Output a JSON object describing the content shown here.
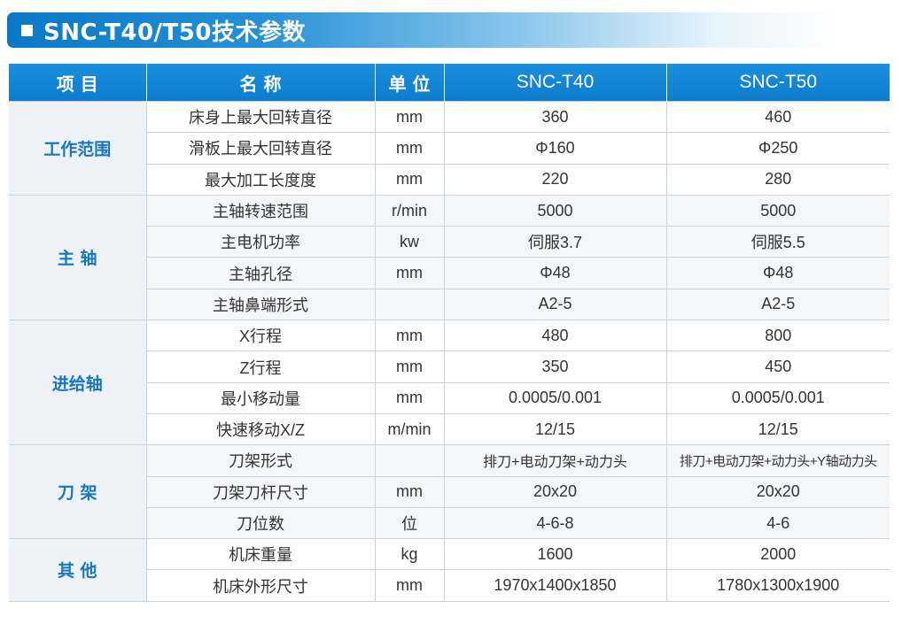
{
  "title": "SNC-T40/T50技术参数",
  "header": {
    "item": "项 目",
    "name": "名 称",
    "unit": "单 位",
    "model1": "SNC-T40",
    "model2": "SNC-T50"
  },
  "groups": [
    {
      "label": "工作范围",
      "rows": [
        {
          "name": "床身上最大回转直径",
          "unit": "mm",
          "t40": "360",
          "t50": "460"
        },
        {
          "name": "滑板上最大回转直径",
          "unit": "mm",
          "t40": "Φ160",
          "t50": "Φ250"
        },
        {
          "name": "最大加工长度度",
          "unit": "mm",
          "t40": "220",
          "t50": "280"
        }
      ]
    },
    {
      "label": "主 轴",
      "rows": [
        {
          "name": "主轴转速范围",
          "unit": "r/min",
          "t40": "5000",
          "t50": "5000"
        },
        {
          "name": "主电机功率",
          "unit": "kw",
          "t40": "伺服3.7",
          "t50": "伺服5.5"
        },
        {
          "name": "主轴孔径",
          "unit": "mm",
          "t40": "Φ48",
          "t50": "Φ48"
        },
        {
          "name": "主轴鼻端形式",
          "unit": "",
          "t40": "A2-5",
          "t50": "A2-5"
        }
      ]
    },
    {
      "label": "进给轴",
      "rows": [
        {
          "name": "X行程",
          "unit": "mm",
          "t40": "480",
          "t50": "800"
        },
        {
          "name": "Z行程",
          "unit": "mm",
          "t40": "350",
          "t50": "450"
        },
        {
          "name": "最小移动量",
          "unit": "mm",
          "t40": "0.0005/0.001",
          "t50": "0.0005/0.001"
        },
        {
          "name": "快速移动X/Z",
          "unit": "m/min",
          "t40": "12/15",
          "t50": "12/15"
        }
      ]
    },
    {
      "label": "刀 架",
      "rows": [
        {
          "name": "刀架形式",
          "unit": "",
          "t40": "排刀+电动刀架+动力头",
          "t50": "排刀+电动刀架+动力头+Y轴动力头"
        },
        {
          "name": "刀架刀杆尺寸",
          "unit": "mm",
          "t40": "20x20",
          "t50": "20x20"
        },
        {
          "name": "刀位数",
          "unit": "位",
          "t40": "4-6-8",
          "t50": "4-6"
        }
      ]
    },
    {
      "label": "其 他",
      "rows": [
        {
          "name": "机床重量",
          "unit": "kg",
          "t40": "1600",
          "t50": "2000"
        },
        {
          "name": "机床外形尺寸",
          "unit": "mm",
          "t40": "1970x1400x1850",
          "t50": "1780x1300x1900"
        }
      ]
    }
  ]
}
